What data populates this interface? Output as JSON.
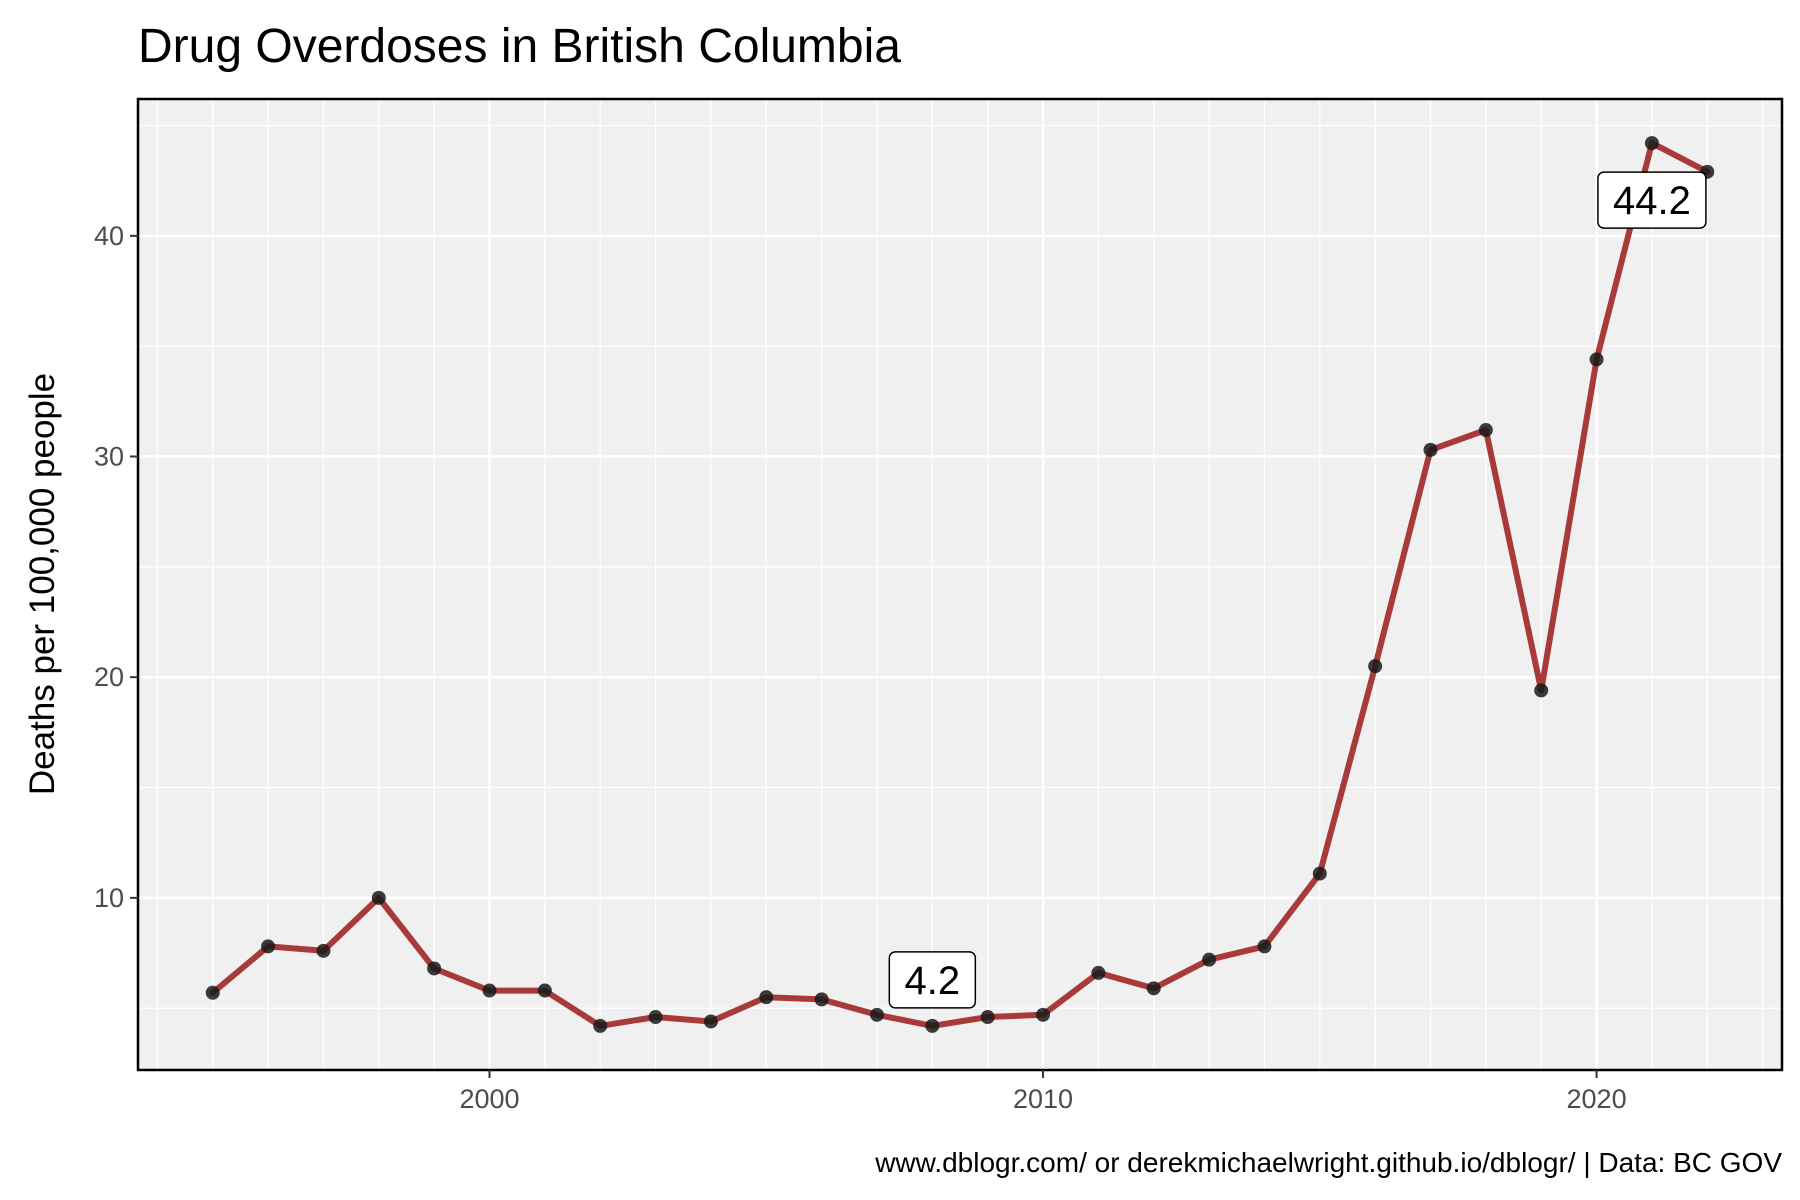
{
  "chart_data": {
    "type": "line",
    "title": "Drug Overdoses in British Columbia",
    "xlabel": "",
    "ylabel": "Deaths per 100,000 people",
    "caption": "www.dblogr.com/ or derekmichaelwright.github.io/dblogr/ | Data: BC GOV",
    "x": [
      1995,
      1996,
      1997,
      1998,
      1999,
      2000,
      2001,
      2002,
      2003,
      2004,
      2005,
      2006,
      2007,
      2008,
      2009,
      2010,
      2011,
      2012,
      2013,
      2014,
      2015,
      2016,
      2017,
      2018,
      2019,
      2020,
      2021,
      2022
    ],
    "series": [
      {
        "values": [
          5.7,
          7.8,
          7.6,
          10.0,
          6.8,
          5.8,
          5.8,
          4.2,
          4.6,
          4.4,
          5.5,
          5.4,
          4.7,
          4.2,
          4.6,
          4.7,
          6.6,
          5.9,
          7.2,
          7.8,
          11.1,
          20.5,
          30.3,
          31.2,
          19.4,
          34.4,
          44.2,
          42.9
        ],
        "line_color": "#a83a3a",
        "point_color": "#1a1a1a"
      }
    ],
    "xlim": [
      1993.65,
      2023.35
    ],
    "ylim": [
      2.2,
      46.2
    ],
    "x_ticks": [
      2000,
      2010,
      2020
    ],
    "x_tick_labels": [
      "2000",
      "2010",
      "2020"
    ],
    "y_ticks": [
      10,
      20,
      30,
      40
    ],
    "y_tick_labels": [
      "10",
      "20",
      "30",
      "40"
    ],
    "annotations": [
      {
        "x": 2008,
        "y": 4.2,
        "label": "4.2"
      },
      {
        "x": 2021,
        "y": 44.2,
        "label": "44.2"
      }
    ],
    "grid": true,
    "panel_background": "#f0f0f0",
    "grid_color": "#ffffff"
  }
}
